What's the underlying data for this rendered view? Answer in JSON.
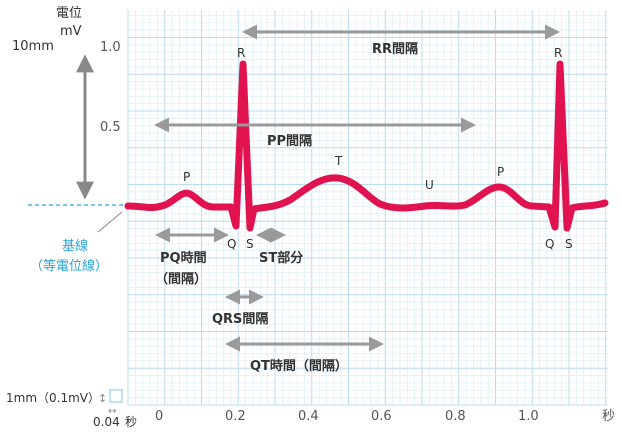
{
  "axis": {
    "y_title_1": "電位",
    "y_title_2": "mV",
    "y_ticks": [
      "1.0",
      "0.5"
    ],
    "x_ticks": [
      "0",
      "0.2",
      "0.4",
      "0.6",
      "0.8",
      "1.0"
    ],
    "x_unit": "秒",
    "scale_10mm": "10mm"
  },
  "baseline": {
    "label_1": "基線",
    "label_2": "（等電位線）"
  },
  "waves": {
    "P1": "P",
    "Q1": "Q",
    "R1": "R",
    "S1": "S",
    "T": "T",
    "U": "U",
    "P2": "P",
    "Q2": "Q",
    "R2": "R",
    "S2": "S"
  },
  "intervals": {
    "rr": "RR間隔",
    "pp": "PP間隔",
    "pq_1": "PQ時間",
    "pq_2": "（間隔）",
    "st": "ST部分",
    "qrs": "QRS間隔",
    "qt": "QT時間（間隔）"
  },
  "legend": {
    "small_box": "1mm（0.1mV）",
    "small_time": "0.04",
    "small_time_unit": "秒"
  },
  "colors": {
    "trace": "#e0124f",
    "grid_minor": "#dcedf6",
    "grid_major": "#bcdcee",
    "arrow": "#9a9a9a",
    "baseline": "#2aa3d6"
  }
}
